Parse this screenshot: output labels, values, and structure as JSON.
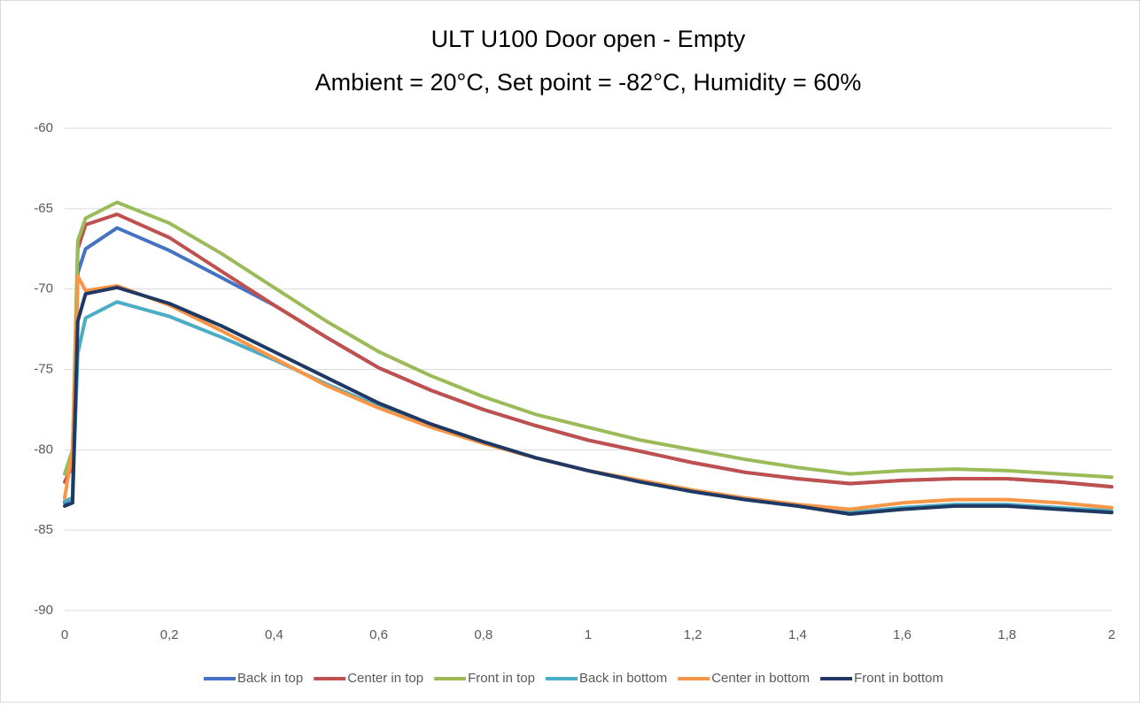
{
  "chart_data": {
    "type": "line",
    "title": "ULT U100 Door open - Empty",
    "subtitle": "Ambient = 20°C, Set point = -82°C, Humidity = 60%",
    "x": [
      0,
      0.015,
      0.025,
      0.04,
      0.1,
      0.2,
      0.3,
      0.4,
      0.5,
      0.6,
      0.7,
      0.8,
      0.9,
      1.0,
      1.1,
      1.2,
      1.3,
      1.4,
      1.5,
      1.6,
      1.7,
      1.8,
      1.9,
      2.0
    ],
    "series": [
      {
        "name": "Back in top",
        "color": "#4472c4",
        "values": [
          -83.3,
          -83,
          -69,
          -67.5,
          -66.2,
          -67.6,
          -69.3,
          -71.0,
          -73.0,
          -74.9,
          -76.3,
          -77.5,
          -78.5,
          -79.4,
          -80.1,
          -80.8,
          -81.4,
          -81.8,
          -82.1,
          -81.9,
          -81.8,
          -81.8,
          -82.0,
          -82.3
        ]
      },
      {
        "name": "Center in top",
        "color": "#c0504d",
        "values": [
          -82,
          -81,
          -67.5,
          -66,
          -65.35,
          -66.8,
          -68.9,
          -71.0,
          -73.0,
          -74.9,
          -76.3,
          -77.5,
          -78.5,
          -79.4,
          -80.1,
          -80.8,
          -81.4,
          -81.8,
          -82.1,
          -81.9,
          -81.8,
          -81.8,
          -82.0,
          -82.3
        ]
      },
      {
        "name": "Front in top",
        "color": "#9bbb59",
        "values": [
          -81.5,
          -80,
          -67,
          -65.6,
          -64.6,
          -65.9,
          -67.8,
          -69.9,
          -72.0,
          -73.9,
          -75.4,
          -76.7,
          -77.8,
          -78.6,
          -79.4,
          -80.0,
          -80.6,
          -81.1,
          -81.5,
          -81.3,
          -81.2,
          -81.3,
          -81.5,
          -81.7
        ]
      },
      {
        "name": "Back in bottom",
        "color": "#4bacc6",
        "values": [
          -83.2,
          -83,
          -74,
          -71.8,
          -70.8,
          -71.7,
          -73.0,
          -74.4,
          -75.9,
          -77.3,
          -78.5,
          -79.6,
          -80.5,
          -81.3,
          -82.0,
          -82.6,
          -83.1,
          -83.5,
          -83.9,
          -83.6,
          -83.4,
          -83.4,
          -83.6,
          -83.8
        ]
      },
      {
        "name": "Center in bottom",
        "color": "#f79646",
        "values": [
          -83,
          -80,
          -69.2,
          -70.1,
          -69.8,
          -71,
          -72.6,
          -74.3,
          -76.0,
          -77.4,
          -78.6,
          -79.6,
          -80.5,
          -81.3,
          -81.9,
          -82.5,
          -83.0,
          -83.4,
          -83.7,
          -83.3,
          -83.1,
          -83.1,
          -83.3,
          -83.6
        ]
      },
      {
        "name": "Front in bottom",
        "color": "#1f3864",
        "values": [
          -83.5,
          -83.3,
          -72,
          -70.3,
          -69.9,
          -70.9,
          -72.3,
          -73.9,
          -75.5,
          -77.1,
          -78.4,
          -79.5,
          -80.5,
          -81.3,
          -82.0,
          -82.6,
          -83.1,
          -83.5,
          -84.0,
          -83.7,
          -83.5,
          -83.5,
          -83.7,
          -83.9
        ]
      }
    ],
    "xlim": [
      0,
      2
    ],
    "xticks": [
      0,
      {
        "value": 0.2,
        "label": "0,2"
      },
      {
        "value": 0.4,
        "label": "0,4"
      },
      {
        "value": 0.6,
        "label": "0,6"
      },
      {
        "value": 0.8,
        "label": "0,8"
      },
      1,
      {
        "value": 1.2,
        "label": "1,2"
      },
      {
        "value": 1.4,
        "label": "1,4"
      },
      {
        "value": 1.6,
        "label": "1,6"
      },
      {
        "value": 1.8,
        "label": "1,8"
      },
      2
    ],
    "ylim": [
      -90,
      -60
    ],
    "yticks": [
      -90,
      -85,
      -80,
      -75,
      -70,
      -65,
      -60
    ],
    "grid": true,
    "legend": "bottom"
  }
}
